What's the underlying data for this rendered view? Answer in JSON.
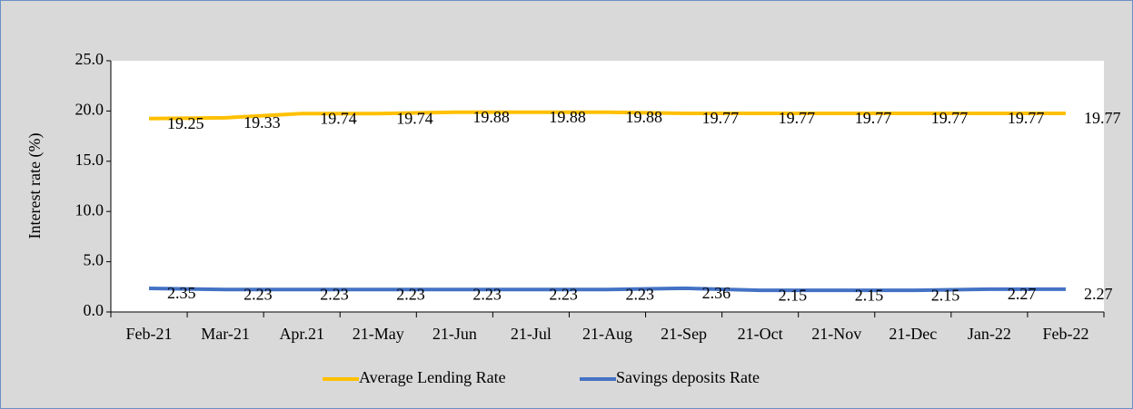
{
  "chart_data": {
    "type": "line",
    "y_label": "Interest rate (%)",
    "categories": [
      "Feb-21",
      "Mar-21",
      "Apr.21",
      "21-May",
      "21-Jun",
      "21-Jul",
      "21-Aug",
      "21-Sep",
      "21-Oct",
      "21-Nov",
      "21-Dec",
      "Jan-22",
      "Feb-22"
    ],
    "series": [
      {
        "name": "Average Lending Rate",
        "color": "#ffc000",
        "values": [
          19.25,
          19.33,
          19.74,
          19.74,
          19.88,
          19.88,
          19.88,
          19.77,
          19.77,
          19.77,
          19.77,
          19.77,
          19.77
        ]
      },
      {
        "name": "Savings deposits Rate",
        "color": "#4472c4",
        "values": [
          2.35,
          2.23,
          2.23,
          2.23,
          2.23,
          2.23,
          2.23,
          2.36,
          2.15,
          2.15,
          2.15,
          2.27,
          2.27
        ]
      }
    ],
    "ylim": [
      0,
      25
    ],
    "yticks": [
      {
        "value": 0,
        "label": "0.0"
      },
      {
        "value": 5,
        "label": "5.0"
      },
      {
        "value": 10,
        "label": "10.0"
      },
      {
        "value": 15,
        "label": "15.0"
      },
      {
        "value": 20,
        "label": "20.0"
      },
      {
        "value": 25,
        "label": "25.0"
      }
    ],
    "grid": false,
    "legend": "bottom"
  }
}
